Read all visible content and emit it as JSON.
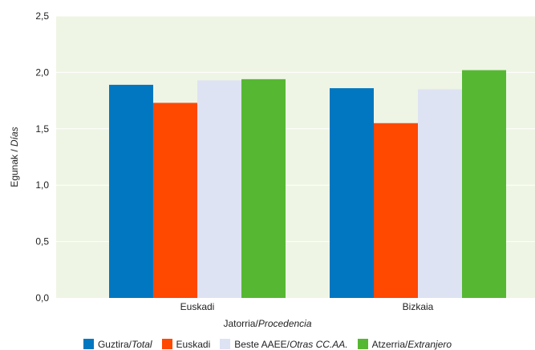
{
  "chart_data": {
    "type": "bar",
    "categories": [
      "Euskadi",
      "Bizkaia"
    ],
    "series": [
      {
        "name": "Guztira/",
        "name_italic": "Total",
        "color": "#0077c0",
        "values": [
          1.89,
          1.86
        ]
      },
      {
        "name": "Euskadi",
        "name_italic": "",
        "color": "#ff4800",
        "values": [
          1.73,
          1.55
        ]
      },
      {
        "name": "Beste AAEE/",
        "name_italic": "Otras CC.AA.",
        "color": "#dde3f3",
        "values": [
          1.93,
          1.85
        ]
      },
      {
        "name": "Atzerria/",
        "name_italic": "Extranjero",
        "color": "#56b832",
        "values": [
          1.94,
          2.02
        ]
      }
    ],
    "ylim": [
      0,
      2.5
    ],
    "yticks": [
      "0,0",
      "0,5",
      "1,0",
      "1,5",
      "2,0",
      "2,5"
    ],
    "ylabel": "Egunak / ",
    "ylabel_italic": "Días",
    "xlabel": "Jatorria/",
    "xlabel_italic": "Procedencia",
    "plot_background": "#eff5e5",
    "grid": true,
    "legend": "bottom"
  }
}
